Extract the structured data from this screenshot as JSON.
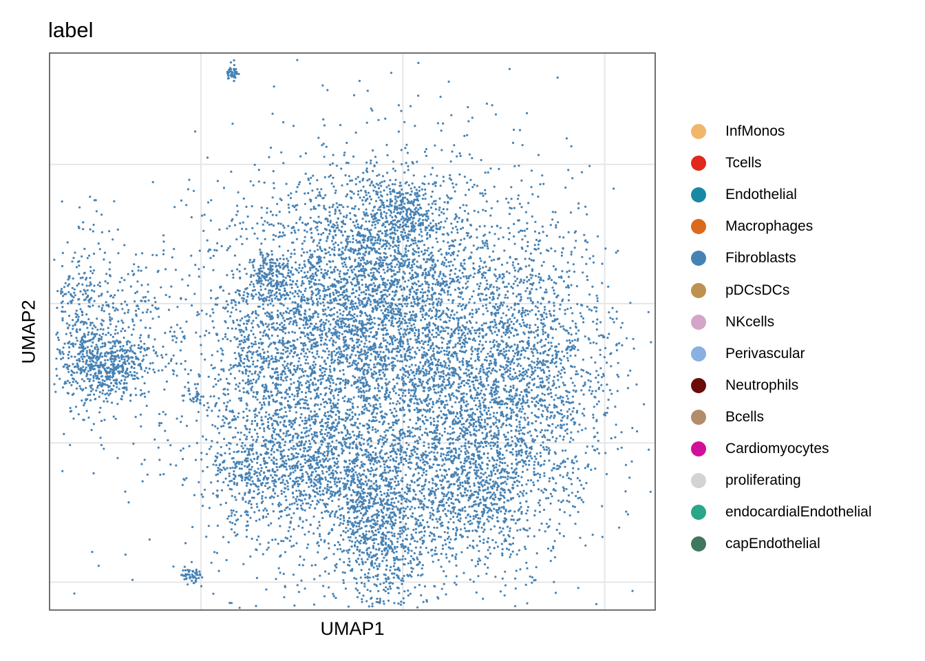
{
  "chart_data": {
    "type": "scatter",
    "title": "label",
    "xlabel": "UMAP1",
    "ylabel": "UMAP2",
    "grid": true,
    "tick_labels": false,
    "legend_position": "right",
    "point_color": "#4682B4",
    "legend": [
      {
        "name": "InfMonos",
        "color": "#F0B66B"
      },
      {
        "name": "Tcells",
        "color": "#E0281C"
      },
      {
        "name": "Endothelial",
        "color": "#1A87A5"
      },
      {
        "name": "Macrophages",
        "color": "#DA6B1C"
      },
      {
        "name": "Fibroblasts",
        "color": "#4682B4"
      },
      {
        "name": "pDCsDCs",
        "color": "#BD914F"
      },
      {
        "name": "NKcells",
        "color": "#D4A5C6"
      },
      {
        "name": "Perivascular",
        "color": "#89B0E0"
      },
      {
        "name": "Neutrophils",
        "color": "#6D0A0A"
      },
      {
        "name": "Bcells",
        "color": "#B38C6B"
      },
      {
        "name": "Cardiomyocytes",
        "color": "#D20F9B"
      },
      {
        "name": "proliferating",
        "color": "#D3D3D3"
      },
      {
        "name": "endocardialEndothelial",
        "color": "#2AA689"
      },
      {
        "name": "capEndothelial",
        "color": "#3F7761"
      }
    ],
    "series": [
      {
        "name": "Fibroblasts",
        "clusters": [
          {
            "cx": 0.3,
            "cy": 0.0,
            "sx": 0.95,
            "sy": 0.75,
            "n": 4200
          },
          {
            "cx": -0.2,
            "cy": 0.4,
            "sx": 0.55,
            "sy": 0.45,
            "n": 900
          },
          {
            "cx": 0.25,
            "cy": 0.8,
            "sx": 0.4,
            "sy": 0.35,
            "n": 900
          },
          {
            "cx": 0.55,
            "cy": 1.15,
            "sx": 0.15,
            "sy": 0.12,
            "n": 180
          },
          {
            "cx": -0.8,
            "cy": 0.7,
            "sx": 0.12,
            "sy": 0.08,
            "n": 160
          },
          {
            "cx": -0.8,
            "cy": 0.0,
            "sx": 0.28,
            "sy": 0.38,
            "n": 450
          },
          {
            "cx": 1.2,
            "cy": -0.15,
            "sx": 0.5,
            "sy": 0.6,
            "n": 1300
          },
          {
            "cx": 1.85,
            "cy": 0.0,
            "sx": 0.4,
            "sy": 0.5,
            "n": 900
          },
          {
            "cx": -0.4,
            "cy": -0.7,
            "sx": 0.3,
            "sy": 0.22,
            "n": 550
          },
          {
            "cx": -1.05,
            "cy": -0.75,
            "sx": 0.18,
            "sy": 0.15,
            "n": 200
          },
          {
            "cx": 0.1,
            "cy": -0.95,
            "sx": 0.12,
            "sy": 0.25,
            "n": 220
          },
          {
            "cx": 0.35,
            "cy": -1.2,
            "sx": 0.2,
            "sy": 0.35,
            "n": 550
          },
          {
            "cx": 1.2,
            "cy": -0.85,
            "sx": 0.35,
            "sy": 0.2,
            "n": 450
          },
          {
            "cx": -2.65,
            "cy": 0.3,
            "sx": 0.18,
            "sy": 0.35,
            "n": 420
          },
          {
            "cx": -2.4,
            "cy": 0.05,
            "sx": 0.2,
            "sy": 0.1,
            "n": 380
          },
          {
            "cx": -2.15,
            "cy": 0.3,
            "sx": 0.25,
            "sy": 0.25,
            "n": 180
          },
          {
            "cx": -1.55,
            "cy": -0.15,
            "sx": 0.03,
            "sy": 0.05,
            "n": 25
          },
          {
            "cx": -1.2,
            "cy": 2.15,
            "sx": 0.04,
            "sy": 0.03,
            "n": 45
          },
          {
            "cx": -1.6,
            "cy": -1.45,
            "sx": 0.05,
            "sy": 0.03,
            "n": 55
          }
        ]
      }
    ],
    "xlim": [
      -3.0,
      3.0
    ],
    "ylim": [
      -1.7,
      2.3
    ]
  }
}
